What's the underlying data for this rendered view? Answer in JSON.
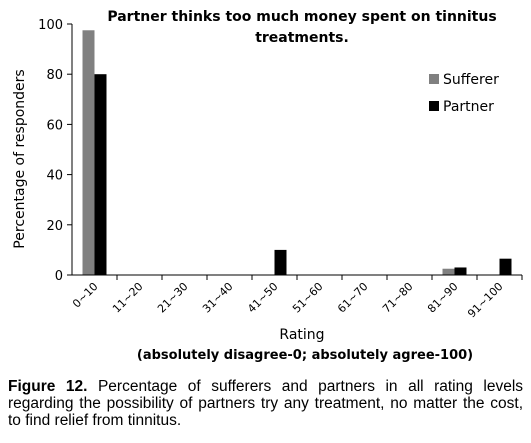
{
  "chart_data": {
    "type": "bar",
    "title_line1": "Partner thinks too much money spent on tinnitus",
    "title_line2": "treatments.",
    "xlabel": "Rating",
    "xlabel_note": "(absolutely disagree-0; absolutely agree-100)",
    "ylabel": "Percentage of responders",
    "ylim": [
      0,
      100
    ],
    "yticks": [
      "0",
      "20",
      "40",
      "60",
      "80",
      "100"
    ],
    "grid": false,
    "legend_position": "top-right",
    "categories": [
      "0~10",
      "11~20",
      "21~30",
      "31~40",
      "41~50",
      "51~60",
      "61~70",
      "71~80",
      "81~90",
      "91~100"
    ],
    "series": [
      {
        "name": "Sufferer",
        "color": "#808080",
        "values": [
          97.5,
          0,
          0,
          0,
          0,
          0,
          0,
          0,
          2.5,
          0
        ]
      },
      {
        "name": "Partner",
        "color": "#000000",
        "values": [
          80,
          0,
          0,
          0,
          10,
          0,
          0,
          0,
          3,
          6.5
        ]
      }
    ]
  },
  "caption": {
    "label": "Figure 12.",
    "text": "Percentage of sufferers and partners in all rating levels regarding the possibility of partners try any treatment, no matter the cost, to find relief from tinnitus."
  }
}
